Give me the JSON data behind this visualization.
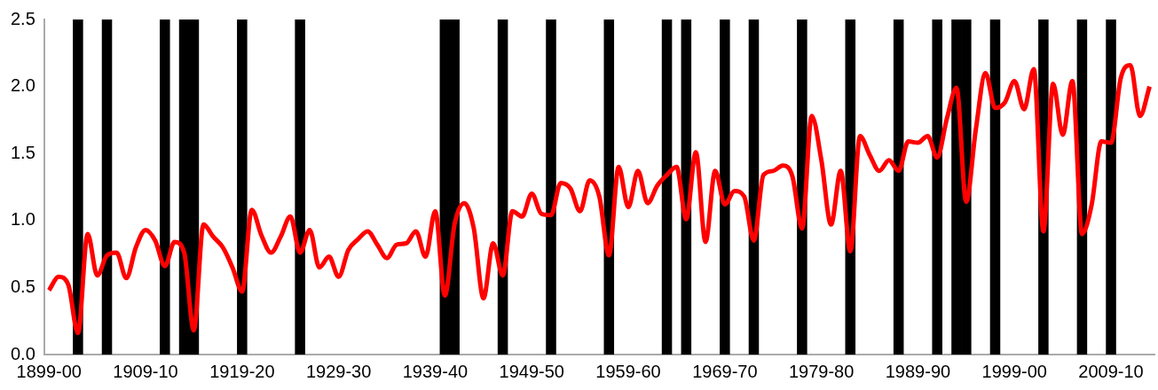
{
  "chart_data": {
    "type": "line",
    "categories": [
      "1899-00",
      null,
      null,
      null,
      null,
      null,
      null,
      null,
      null,
      null,
      "1909-10",
      null,
      null,
      null,
      null,
      null,
      null,
      null,
      null,
      null,
      "1919-20",
      null,
      null,
      null,
      null,
      null,
      null,
      null,
      null,
      null,
      "1929-30",
      null,
      null,
      null,
      null,
      null,
      null,
      null,
      null,
      null,
      "1939-40",
      null,
      null,
      null,
      null,
      null,
      null,
      null,
      null,
      null,
      "1949-50",
      null,
      null,
      null,
      null,
      null,
      null,
      null,
      null,
      null,
      "1959-60",
      null,
      null,
      null,
      null,
      null,
      null,
      null,
      null,
      null,
      "1969-70",
      null,
      null,
      null,
      null,
      null,
      null,
      null,
      null,
      null,
      "1979-80",
      null,
      null,
      null,
      null,
      null,
      null,
      null,
      null,
      null,
      "1989-90",
      null,
      null,
      null,
      null,
      null,
      null,
      null,
      null,
      null,
      "1999-00",
      null,
      null,
      null,
      null,
      null,
      null,
      null,
      null,
      null,
      "2009-10",
      null,
      null,
      null,
      null
    ],
    "series": [
      {
        "type": "bar",
        "color": "#000000",
        "values": [
          null,
          null,
          null,
          2.5,
          null,
          null,
          2.5,
          null,
          null,
          null,
          null,
          null,
          2.5,
          null,
          2.5,
          2.5,
          null,
          null,
          null,
          null,
          2.5,
          null,
          null,
          null,
          null,
          null,
          2.5,
          null,
          null,
          null,
          null,
          null,
          null,
          null,
          null,
          null,
          null,
          null,
          null,
          null,
          null,
          2.5,
          2.5,
          null,
          null,
          null,
          null,
          2.5,
          null,
          null,
          null,
          null,
          2.5,
          null,
          null,
          null,
          null,
          null,
          2.5,
          null,
          null,
          null,
          null,
          null,
          2.5,
          null,
          2.5,
          null,
          null,
          null,
          2.5,
          null,
          null,
          2.5,
          null,
          null,
          null,
          null,
          2.5,
          null,
          null,
          null,
          null,
          2.5,
          null,
          null,
          null,
          null,
          2.5,
          null,
          null,
          null,
          2.5,
          null,
          2.5,
          2.5,
          null,
          null,
          2.5,
          null,
          null,
          null,
          null,
          2.5,
          null,
          null,
          null,
          2.5,
          null,
          null,
          2.5,
          null,
          null,
          null,
          null
        ]
      },
      {
        "color": "#ff0000",
        "values": [
          0.48,
          0.58,
          0.52,
          0.16,
          0.9,
          0.59,
          0.74,
          0.76,
          0.57,
          0.8,
          0.93,
          0.85,
          0.66,
          0.84,
          0.76,
          0.18,
          0.97,
          0.88,
          0.8,
          0.65,
          0.47,
          1.08,
          0.89,
          0.76,
          0.88,
          1.03,
          0.76,
          0.93,
          0.65,
          0.73,
          0.58,
          0.78,
          0.86,
          0.92,
          0.82,
          0.72,
          0.82,
          0.83,
          0.92,
          0.73,
          1.07,
          0.44,
          0.97,
          1.13,
          0.94,
          0.42,
          0.83,
          0.59,
          1.07,
          1.03,
          1.2,
          1.05,
          1.04,
          1.28,
          1.24,
          1.07,
          1.3,
          1.18,
          0.74,
          1.4,
          1.1,
          1.37,
          1.13,
          1.26,
          1.34,
          1.4,
          1.01,
          1.51,
          0.84,
          1.37,
          1.12,
          1.22,
          1.18,
          0.85,
          1.34,
          1.37,
          1.41,
          1.33,
          0.94,
          1.78,
          1.45,
          0.97,
          1.37,
          0.77,
          1.63,
          1.49,
          1.37,
          1.45,
          1.37,
          1.59,
          1.58,
          1.63,
          1.47,
          1.76,
          1.99,
          1.14,
          1.68,
          2.1,
          1.84,
          1.88,
          2.04,
          1.83,
          2.13,
          0.92,
          2.02,
          1.64,
          2.04,
          0.9,
          1.12,
          1.59,
          1.58,
          2.06,
          2.16,
          1.78,
          2.0
        ]
      }
    ],
    "ylim": [
      0,
      2.5
    ],
    "yticks": [
      {
        "value": 0,
        "label": "0.0"
      },
      {
        "value": 0.5,
        "label": "0.5"
      },
      {
        "value": 1,
        "label": "1.0"
      },
      {
        "value": 1.5,
        "label": "1.5"
      },
      {
        "value": 2,
        "label": "2.0"
      },
      {
        "value": 2.5,
        "label": "2.5"
      }
    ],
    "grid": false,
    "legend": false,
    "marker": "none",
    "line_style": "solid"
  }
}
